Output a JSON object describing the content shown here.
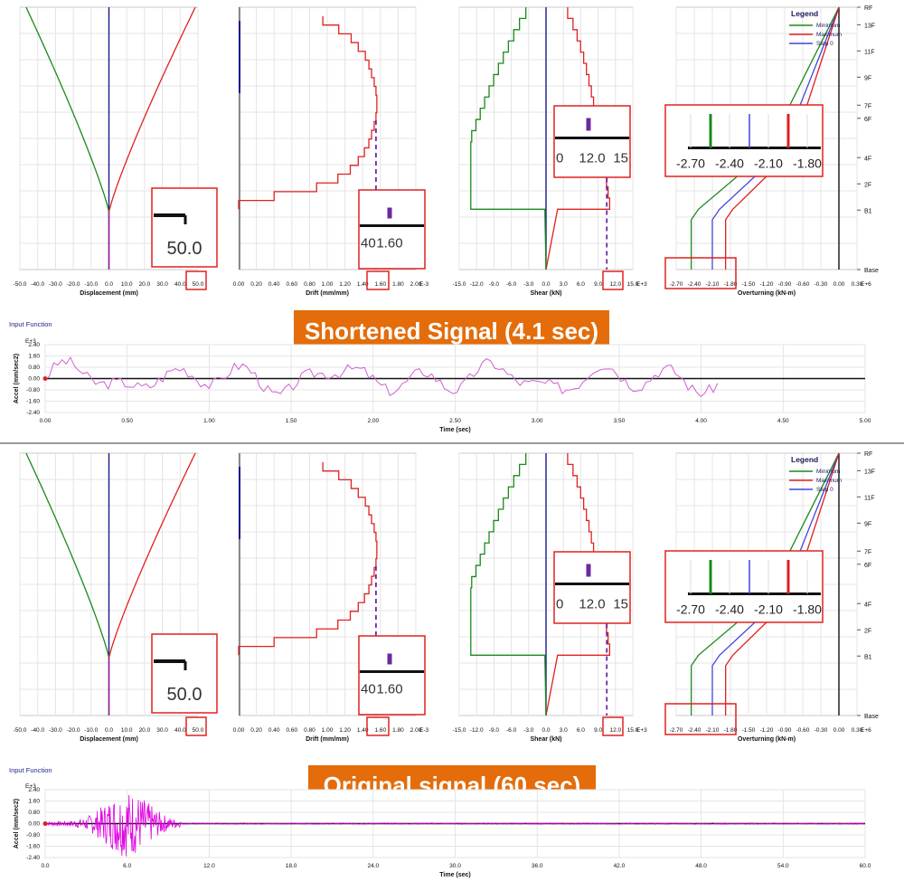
{
  "banners": {
    "top": "Shortened Signal  (4.1 sec)",
    "bottom": "Original signal (60 sec)"
  },
  "input_function_title": "Input Function",
  "legend": {
    "title": "Legend",
    "minimum": "Minimum",
    "maximum": "Maximum",
    "step": "Step 0"
  },
  "colors": {
    "minimum": "#1a8a1a",
    "maximum": "#e02020",
    "step": "#4444dd",
    "center": "#1a1a8a",
    "accel": "#d060d0",
    "accel_dense": "#e000e0",
    "highlight": "#e02020",
    "banner": "#e46c0a"
  },
  "stories": [
    "RF",
    "13F",
    "11F",
    "9F",
    "7F",
    "6F",
    "4F",
    "2F",
    "B1",
    "Base"
  ],
  "chart_data": [
    {
      "id": "top-displacement",
      "type": "line",
      "xlabel": "Displacement (mm)",
      "exp": "",
      "xmin": -50,
      "xmax": 50,
      "ticks": [
        "-50.0",
        "-40.0",
        "-30.0",
        "-20.0",
        "-10.0",
        "0.0",
        "10.0",
        "20.0",
        "30.0",
        "40.0",
        "50.0"
      ],
      "zoom": {
        "labels": [
          "50.0"
        ]
      }
    },
    {
      "id": "top-drift",
      "type": "line",
      "xlabel": "Drift (mm/mm)",
      "exp": "E-3",
      "xmin": 0,
      "xmax": 2,
      "ticks": [
        "0.00",
        "0.20",
        "0.40",
        "0.60",
        "0.80",
        "1.00",
        "1.20",
        "1.40",
        "1.60",
        "1.80",
        "2.00"
      ],
      "zoom": {
        "labels": [
          "40",
          "1.60"
        ]
      }
    },
    {
      "id": "top-shear",
      "type": "line",
      "xlabel": "Shear (kN)",
      "exp": "E+3",
      "xmin": -15,
      "xmax": 15,
      "ticks": [
        "-15.0",
        "-12.0",
        "-9.0",
        "-6.0",
        "-3.0",
        "0.0",
        "3.0",
        "6.0",
        "9.0",
        "12.0",
        "15.0"
      ],
      "zoom": {
        "labels": [
          "0",
          "12.0",
          "15"
        ]
      }
    },
    {
      "id": "top-overturning",
      "type": "line",
      "xlabel": "Overturning (kN-m)",
      "exp": "E+6",
      "xmin": -2.7,
      "xmax": 0.3,
      "ticks": [
        "-2.70",
        "-2.40",
        "-2.10",
        "-1.80",
        "-1.50",
        "-1.20",
        "-0.90",
        "-0.60",
        "-0.30",
        "0.00",
        "0.30"
      ],
      "zoom": {
        "labels": [
          "-2.70",
          "-2.40",
          "-2.10",
          "-1.80"
        ]
      }
    },
    {
      "id": "top-accel",
      "type": "line",
      "title": "Input Function",
      "ylabel": "Accel (mm/sec2)",
      "yexp": "E+3",
      "xlabel": "Time (sec)",
      "xlim": [
        0,
        5
      ],
      "ylim": [
        -2.4,
        2.4
      ],
      "xticks": [
        "0.00",
        "0.50",
        "1.00",
        "1.50",
        "2.00",
        "2.50",
        "3.00",
        "3.50",
        "4.00",
        "4.50",
        "5.00"
      ],
      "yticks": [
        "2.40",
        "1.60",
        "0.80",
        "0.00",
        "-0.80",
        "-1.60",
        "-2.40"
      ],
      "duration": 4.1
    },
    {
      "id": "bottom-displacement",
      "type": "line",
      "xlabel": "Displacement (mm)",
      "exp": "",
      "xmin": -50,
      "xmax": 50,
      "ticks": [
        "-50.0",
        "-40.0",
        "-30.0",
        "-20.0",
        "-10.0",
        "0.0",
        "10.0",
        "20.0",
        "30.0",
        "40.0",
        "50.0"
      ],
      "zoom": {
        "labels": [
          "50.0"
        ]
      }
    },
    {
      "id": "bottom-drift",
      "type": "line",
      "xlabel": "Drift (mm/mm)",
      "exp": "E-3",
      "xmin": 0,
      "xmax": 2,
      "ticks": [
        "0.00",
        "0.20",
        "0.40",
        "0.60",
        "0.80",
        "1.00",
        "1.20",
        "1.40",
        "1.60",
        "1.80",
        "2.00"
      ],
      "zoom": {
        "labels": [
          "40",
          "1.60"
        ]
      }
    },
    {
      "id": "bottom-shear",
      "type": "line",
      "xlabel": "Shear (kN)",
      "exp": "E+3",
      "xmin": -15,
      "xmax": 15,
      "ticks": [
        "-15.0",
        "-12.0",
        "-9.0",
        "-6.0",
        "-3.0",
        "0.0",
        "3.0",
        "6.0",
        "9.0",
        "12.0",
        "15.0"
      ],
      "zoom": {
        "labels": [
          "0",
          "12.0",
          "15"
        ]
      }
    },
    {
      "id": "bottom-overturning",
      "type": "line",
      "xlabel": "Overturning (kN-m)",
      "exp": "E+6",
      "xmin": -2.7,
      "xmax": 0.3,
      "ticks": [
        "-2.70",
        "-2.40",
        "-2.10",
        "-1.80",
        "-1.50",
        "-1.20",
        "-0.90",
        "-0.60",
        "-0.30",
        "0.00",
        "0.30"
      ],
      "zoom": {
        "labels": [
          "-2.70",
          "-2.40",
          "-2.10",
          "-1.80"
        ]
      }
    },
    {
      "id": "bottom-accel",
      "type": "line",
      "title": "Input Function",
      "ylabel": "Accel (mm/sec2)",
      "yexp": "E+3",
      "xlabel": "Time (sec)",
      "xlim": [
        0,
        60
      ],
      "ylim": [
        -2.4,
        2.4
      ],
      "xticks": [
        "0.0",
        "6.0",
        "12.0",
        "18.0",
        "24.0",
        "30.0",
        "36.0",
        "42.0",
        "48.0",
        "54.0",
        "60.0"
      ],
      "yticks": [
        "2.40",
        "1.60",
        "0.80",
        "0.00",
        "-0.80",
        "-1.60",
        "-2.40"
      ],
      "duration": 60
    }
  ]
}
